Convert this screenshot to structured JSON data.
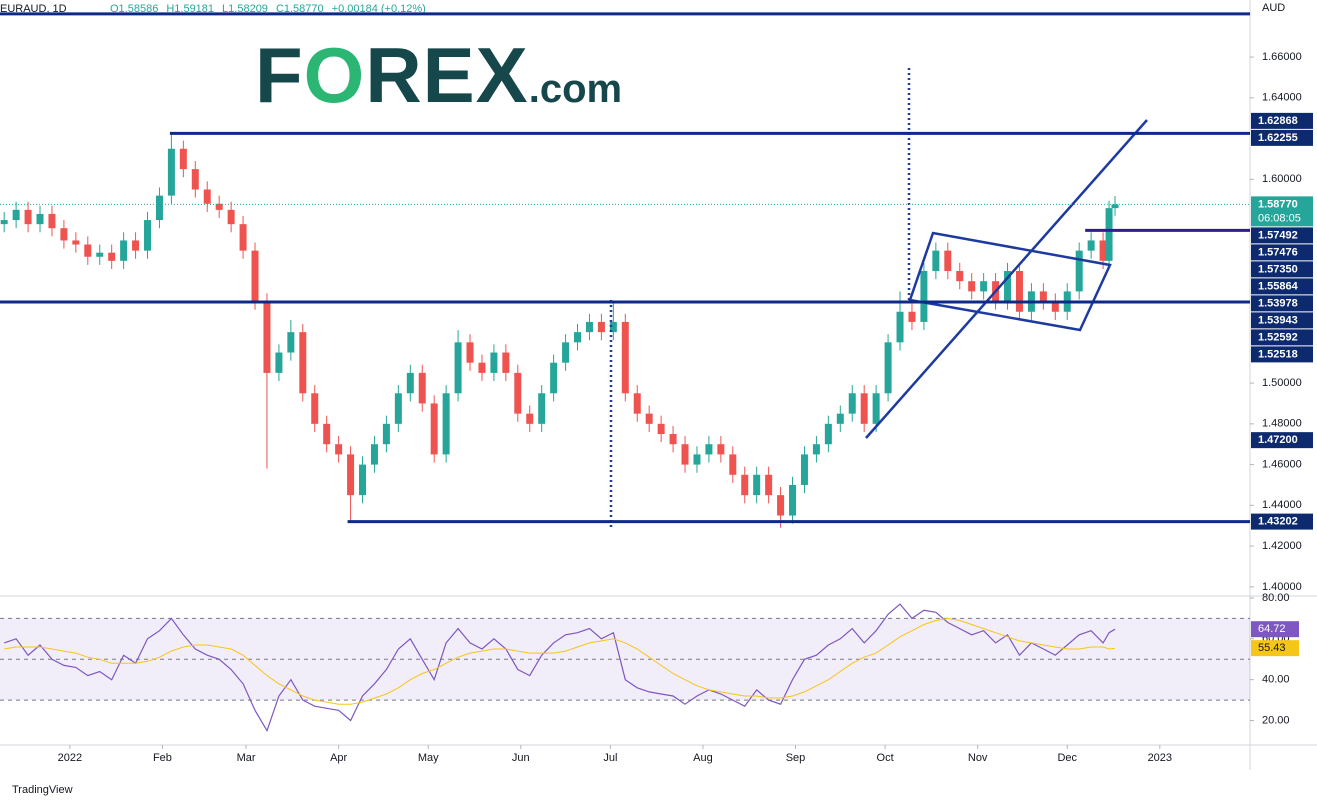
{
  "header": {
    "symbol": "EURAUD, 1D",
    "ohlc": [
      "O1.58586",
      "H1.59181",
      "L1.58209",
      "C1.58770",
      "+0.00184 (+0.12%)"
    ],
    "currency": "AUD"
  },
  "logo": {
    "parts": [
      "F",
      "O",
      "REX"
    ],
    "suffix": ".com"
  },
  "footer": {
    "brand": "TradingView"
  },
  "countdown": "06:08:05",
  "chart_data": [
    {
      "type": "candlestick",
      "x": [
        -22,
        -18,
        -14,
        -10,
        -6,
        -2,
        2,
        6,
        10,
        14,
        18,
        22,
        26,
        30,
        34,
        38,
        42,
        46,
        50,
        54,
        58,
        62,
        66,
        70,
        74,
        78,
        82,
        86,
        90,
        94,
        98,
        102,
        106,
        110,
        114,
        118,
        122,
        126,
        130,
        134,
        138,
        142,
        146,
        150,
        154,
        158,
        162,
        166,
        170,
        174,
        178,
        182,
        186,
        190,
        194,
        198,
        202,
        206,
        210,
        214,
        218,
        222,
        226,
        230,
        234,
        238,
        242,
        246,
        250,
        254,
        258,
        262,
        266,
        270,
        274,
        278,
        282,
        286,
        290,
        294,
        298,
        302,
        306,
        310,
        314,
        318,
        322,
        326,
        330,
        334,
        338,
        342,
        346,
        348,
        350
      ],
      "open": [
        1.578,
        1.58,
        1.585,
        1.578,
        1.583,
        1.576,
        1.57,
        1.568,
        1.562,
        1.564,
        1.56,
        1.57,
        1.565,
        1.58,
        1.592,
        1.615,
        1.605,
        1.595,
        1.588,
        1.585,
        1.578,
        1.565,
        1.54,
        1.505,
        1.515,
        1.525,
        1.495,
        1.48,
        1.47,
        1.465,
        1.445,
        1.46,
        1.47,
        1.48,
        1.495,
        1.505,
        1.49,
        1.465,
        1.495,
        1.52,
        1.51,
        1.505,
        1.515,
        1.505,
        1.485,
        1.48,
        1.495,
        1.51,
        1.52,
        1.525,
        1.53,
        1.525,
        1.53,
        1.495,
        1.485,
        1.48,
        1.475,
        1.47,
        1.46,
        1.465,
        1.47,
        1.465,
        1.455,
        1.445,
        1.455,
        1.445,
        1.435,
        1.45,
        1.465,
        1.47,
        1.48,
        1.485,
        1.495,
        1.48,
        1.495,
        1.52,
        1.535,
        1.53,
        1.555,
        1.565,
        1.555,
        1.55,
        1.545,
        1.55,
        1.54,
        1.555,
        1.535,
        1.545,
        1.54,
        1.535,
        1.545,
        1.565,
        1.57,
        1.56,
        1.58586
      ],
      "high": [
        1.584,
        1.589,
        1.589,
        1.587,
        1.587,
        1.58,
        1.574,
        1.572,
        1.568,
        1.568,
        1.574,
        1.574,
        1.584,
        1.596,
        1.6225,
        1.619,
        1.609,
        1.599,
        1.592,
        1.589,
        1.582,
        1.569,
        1.544,
        1.519,
        1.531,
        1.529,
        1.499,
        1.484,
        1.474,
        1.469,
        1.464,
        1.474,
        1.484,
        1.499,
        1.509,
        1.509,
        1.494,
        1.499,
        1.526,
        1.524,
        1.514,
        1.519,
        1.519,
        1.509,
        1.489,
        1.499,
        1.514,
        1.524,
        1.529,
        1.534,
        1.534,
        1.5395,
        1.534,
        1.499,
        1.489,
        1.484,
        1.479,
        1.474,
        1.469,
        1.474,
        1.474,
        1.469,
        1.459,
        1.459,
        1.459,
        1.449,
        1.454,
        1.469,
        1.474,
        1.484,
        1.489,
        1.499,
        1.499,
        1.499,
        1.524,
        1.545,
        1.539,
        1.559,
        1.569,
        1.569,
        1.559,
        1.554,
        1.554,
        1.554,
        1.559,
        1.559,
        1.549,
        1.549,
        1.544,
        1.549,
        1.569,
        1.574,
        1.574,
        1.5895,
        1.59181
      ],
      "low": [
        1.574,
        1.576,
        1.574,
        1.574,
        1.572,
        1.566,
        1.564,
        1.558,
        1.558,
        1.556,
        1.556,
        1.561,
        1.561,
        1.576,
        1.588,
        1.601,
        1.591,
        1.584,
        1.581,
        1.574,
        1.561,
        1.536,
        1.458,
        1.501,
        1.511,
        1.491,
        1.476,
        1.466,
        1.461,
        1.432,
        1.441,
        1.456,
        1.466,
        1.476,
        1.491,
        1.486,
        1.461,
        1.461,
        1.491,
        1.506,
        1.501,
        1.501,
        1.501,
        1.481,
        1.476,
        1.476,
        1.491,
        1.506,
        1.516,
        1.521,
        1.521,
        1.521,
        1.491,
        1.481,
        1.476,
        1.471,
        1.466,
        1.456,
        1.456,
        1.461,
        1.461,
        1.451,
        1.441,
        1.441,
        1.441,
        1.429,
        1.431,
        1.446,
        1.461,
        1.466,
        1.476,
        1.481,
        1.476,
        1.476,
        1.491,
        1.516,
        1.526,
        1.526,
        1.551,
        1.551,
        1.546,
        1.541,
        1.541,
        1.536,
        1.536,
        1.531,
        1.531,
        1.536,
        1.531,
        1.531,
        1.541,
        1.561,
        1.556,
        1.556,
        1.58209
      ],
      "close": [
        1.58,
        1.585,
        1.578,
        1.583,
        1.576,
        1.57,
        1.568,
        1.562,
        1.564,
        1.56,
        1.57,
        1.565,
        1.58,
        1.592,
        1.615,
        1.605,
        1.595,
        1.588,
        1.585,
        1.578,
        1.565,
        1.54,
        1.505,
        1.515,
        1.525,
        1.495,
        1.48,
        1.47,
        1.465,
        1.445,
        1.46,
        1.47,
        1.48,
        1.495,
        1.505,
        1.49,
        1.465,
        1.495,
        1.52,
        1.51,
        1.505,
        1.515,
        1.505,
        1.485,
        1.48,
        1.495,
        1.51,
        1.52,
        1.525,
        1.53,
        1.525,
        1.53,
        1.495,
        1.485,
        1.48,
        1.475,
        1.47,
        1.46,
        1.465,
        1.47,
        1.465,
        1.455,
        1.445,
        1.455,
        1.445,
        1.435,
        1.45,
        1.465,
        1.47,
        1.48,
        1.485,
        1.495,
        1.48,
        1.495,
        1.52,
        1.535,
        1.53,
        1.555,
        1.565,
        1.555,
        1.55,
        1.545,
        1.55,
        1.54,
        1.555,
        1.535,
        1.545,
        1.54,
        1.535,
        1.545,
        1.565,
        1.57,
        1.56,
        1.58586,
        1.5877
      ],
      "up_color": "#26a69a",
      "down_color": "#ef5350",
      "xlim": [
        -23.4,
        395.2
      ],
      "xticks": [
        {
          "value": 0,
          "label": "2022"
        },
        {
          "value": 31,
          "label": "Feb"
        },
        {
          "value": 59,
          "label": "Mar"
        },
        {
          "value": 90,
          "label": "Apr"
        },
        {
          "value": 120,
          "label": "May"
        },
        {
          "value": 151,
          "label": "Jun"
        },
        {
          "value": 181,
          "label": "Jul"
        },
        {
          "value": 212,
          "label": "Aug"
        },
        {
          "value": 243,
          "label": "Sep"
        },
        {
          "value": 273,
          "label": "Oct"
        },
        {
          "value": 304,
          "label": "Nov"
        },
        {
          "value": 334,
          "label": "Dec"
        },
        {
          "value": 365,
          "label": "2023"
        }
      ],
      "ylim": [
        1.396,
        1.688
      ],
      "yticks": [
        {
          "value": 1.4,
          "label": "1.40000"
        },
        {
          "value": 1.42,
          "label": "1.42000"
        },
        {
          "value": 1.44,
          "label": "1.44000"
        },
        {
          "value": 1.46,
          "label": "1.46000"
        },
        {
          "value": 1.48,
          "label": "1.48000"
        },
        {
          "value": 1.5,
          "label": "1.50000"
        },
        {
          "value": 1.6,
          "label": "1.60000"
        },
        {
          "value": 1.64,
          "label": "1.64000"
        },
        {
          "value": 1.66,
          "label": "1.66000"
        }
      ],
      "levels": [
        {
          "value": 1.6812,
          "from": -23.4,
          "color": "#0d2a8a"
        },
        {
          "value": 1.62255,
          "from": 33.5,
          "color": "#0d2a8a"
        },
        {
          "value": 1.57492,
          "from": 340,
          "color": "#311b92"
        },
        {
          "value": 1.53978,
          "from": -23.4,
          "color": "#0d2a8a"
        },
        {
          "value": 1.43202,
          "from": 93,
          "color": "#0d2a8a"
        }
      ],
      "price_labels": [
        {
          "value": 1.62868,
          "label": "1.62868",
          "color": "#0d2a6e"
        },
        {
          "value": 1.62255,
          "label": "1.62255",
          "color": "#0d2a6e"
        },
        {
          "value": 1.5877,
          "label": "1.58770",
          "color": "#26a69a"
        },
        {
          "value": 1.57492,
          "label": "1.57492",
          "color": "#0d2a6e"
        },
        {
          "value": 1.57476,
          "label": "1.57476",
          "color": "#0d2a6e"
        },
        {
          "value": 1.5735,
          "label": "1.57350",
          "color": "#0d2a6e"
        },
        {
          "value": 1.55864,
          "label": "1.55864",
          "color": "#0d2a6e"
        },
        {
          "value": 1.53978,
          "label": "1.53978",
          "color": "#0d2a6e"
        },
        {
          "value": 1.53943,
          "label": "1.53943",
          "color": "#0d2a6e"
        },
        {
          "value": 1.52592,
          "label": "1.52592",
          "color": "#0d2a6e"
        },
        {
          "value": 1.52518,
          "label": "1.52518",
          "color": "#0d2a6e"
        },
        {
          "value": 1.472,
          "label": "1.47200",
          "color": "#0d2a6e"
        },
        {
          "value": 1.43202,
          "label": "1.43202",
          "color": "#0d2a6e"
        }
      ]
    },
    {
      "type": "line",
      "x": [
        -22,
        -18,
        -14,
        -10,
        -6,
        -2,
        2,
        6,
        10,
        14,
        18,
        22,
        26,
        30,
        34,
        38,
        42,
        46,
        50,
        54,
        58,
        62,
        66,
        70,
        74,
        78,
        82,
        86,
        90,
        94,
        98,
        102,
        106,
        110,
        114,
        118,
        122,
        126,
        130,
        134,
        138,
        142,
        146,
        150,
        154,
        158,
        162,
        166,
        170,
        174,
        178,
        182,
        186,
        190,
        194,
        198,
        202,
        206,
        210,
        214,
        218,
        222,
        226,
        230,
        234,
        238,
        242,
        246,
        250,
        254,
        258,
        262,
        266,
        270,
        274,
        278,
        282,
        286,
        290,
        294,
        298,
        302,
        306,
        310,
        314,
        318,
        322,
        326,
        330,
        334,
        338,
        342,
        346,
        348,
        350
      ],
      "series": [
        {
          "color": "#7e57c2",
          "values": [
            58,
            60,
            52,
            57,
            50,
            47,
            46,
            42,
            44,
            40,
            52,
            48,
            60,
            64,
            70,
            62,
            55,
            52,
            50,
            45,
            38,
            25,
            15,
            32,
            40,
            30,
            27,
            26,
            25,
            20,
            32,
            38,
            45,
            55,
            60,
            50,
            40,
            58,
            65,
            58,
            55,
            60,
            55,
            45,
            42,
            52,
            58,
            62,
            63,
            65,
            60,
            63,
            40,
            36,
            34,
            33,
            32,
            28,
            32,
            35,
            33,
            30,
            27,
            35,
            30,
            28,
            40,
            50,
            52,
            57,
            60,
            65,
            58,
            64,
            72,
            77,
            70,
            74,
            73,
            68,
            65,
            62,
            64,
            58,
            62,
            52,
            58,
            55,
            52,
            57,
            62,
            64,
            58,
            63,
            64.72
          ]
        },
        {
          "color": "#f5c518",
          "values": [
            55,
            56,
            56,
            56,
            55,
            54,
            53,
            51,
            50,
            48,
            48,
            48,
            49,
            51,
            54,
            56,
            57,
            57,
            56,
            55,
            52,
            47,
            42,
            38,
            35,
            32,
            30,
            29,
            28,
            28,
            29,
            31,
            33,
            36,
            40,
            43,
            45,
            48,
            51,
            53,
            54,
            55,
            55,
            54,
            53,
            53,
            53,
            54,
            56,
            58,
            59,
            60,
            58,
            55,
            51,
            47,
            43,
            40,
            37,
            35,
            34,
            33,
            32,
            32,
            31,
            31,
            32,
            34,
            37,
            40,
            44,
            48,
            51,
            53,
            57,
            61,
            64,
            67,
            69,
            70,
            69,
            67,
            65,
            63,
            61,
            59,
            58,
            57,
            56,
            55,
            55,
            56,
            56,
            55,
            55.43
          ]
        }
      ],
      "xlim": [
        -23.4,
        395.2
      ],
      "ylim": [
        8,
        80
      ],
      "yticks": [
        {
          "value": 80,
          "label": "80.00"
        },
        {
          "value": 60,
          "label": "60.00"
        },
        {
          "value": 40,
          "label": "40.00"
        },
        {
          "value": 20,
          "label": "20.00"
        }
      ],
      "bands": [
        70,
        50,
        30
      ]
    }
  ]
}
